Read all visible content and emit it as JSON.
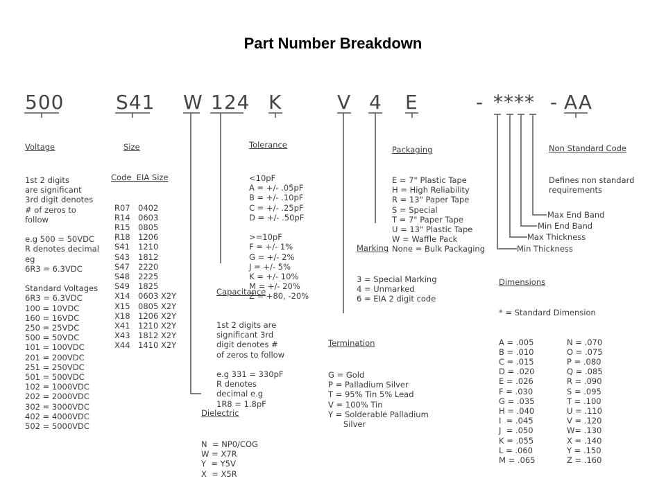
{
  "title": "Part Number Breakdown",
  "codes": {
    "voltage": "500",
    "size": "S41",
    "dielectric": "W",
    "capacitance": "124",
    "tolerance": "K",
    "termination": "V",
    "marking": "4",
    "packaging": "E",
    "dash1": "-",
    "dimensions": "****",
    "dash2": "-",
    "nonstandard": "AA"
  },
  "voltage": {
    "title": "Voltage",
    "lines": [
      "1st 2 digits",
      "are significant",
      "3rd digit denotes",
      "# of zeros to",
      "follow",
      "",
      "e.g 500 = 50VDC",
      "R denotes decimal",
      "eg",
      "6R3 = 6.3VDC",
      "",
      "Standard Voltages",
      "6R3 = 6.3VDC",
      "100 = 10VDC",
      "160 = 16VDC",
      "250 = 25VDC",
      "500 = 50VDC",
      "101 = 100VDC",
      "201 = 200VDC",
      "251 = 250VDC",
      "501 = 500VDC",
      "102 = 1000VDC",
      "202 = 2000VDC",
      "302 = 3000VDC",
      "402 = 4000VDC",
      "502 = 5000VDC"
    ]
  },
  "size": {
    "title": "Size",
    "header": "Code  EIA Size",
    "rows": [
      [
        "R07",
        "0402"
      ],
      [
        "R14",
        "0603"
      ],
      [
        "R15",
        "0805"
      ],
      [
        "R18",
        "1206"
      ],
      [
        "S41",
        "1210"
      ],
      [
        "S43",
        "1812"
      ],
      [
        "S47",
        "2220"
      ],
      [
        "S48",
        "2225"
      ],
      [
        "S49",
        "1825"
      ],
      [
        "X14",
        "0603 X2Y"
      ],
      [
        "X15",
        "0805 X2Y"
      ],
      [
        "X18",
        "1206 X2Y"
      ],
      [
        "X41",
        "1210 X2Y"
      ],
      [
        "X43",
        "1812 X2Y"
      ],
      [
        "X44",
        "1410 X2Y"
      ]
    ]
  },
  "tolerance": {
    "title": "Tolerance",
    "lines": [
      "<10pF",
      "A = +/- .05pF",
      "B = +/- .10pF",
      "C = +/- .25pF",
      "D = +/- .50pF",
      "",
      ">=10pF",
      "F = +/- 1%",
      "G = +/- 2%",
      "J = +/- 5%",
      "K = +/- 10%",
      "M = +/- 20%",
      "Z = +80, -20%"
    ]
  },
  "capacitance": {
    "title": "Capacitance",
    "lines": [
      "1st 2 digits are",
      "significant 3rd",
      "digit denotes #",
      "of zeros to follow",
      "",
      "e.g 331 = 330pF",
      "R denotes",
      "decimal e.g",
      "1R8 = 1.8pF"
    ]
  },
  "dielectric": {
    "title": "Dielectric",
    "lines": [
      "N  = NP0/COG",
      "W = X7R",
      "Y  = Y5V",
      "X  = X5R"
    ]
  },
  "termination": {
    "title": "Termination",
    "lines": [
      "G = Gold",
      "P = Palladium Silver",
      "T = 95% Tin 5% Lead",
      "V = 100% Tin",
      "Y = Solderable Palladium",
      "      Silver"
    ]
  },
  "marking": {
    "title": "Marking",
    "lines": [
      "3 = Special Marking",
      "4 = Unmarked",
      "6 = EIA 2 digit code"
    ]
  },
  "packaging": {
    "title": "Packaging",
    "lines": [
      "E = 7\" Plastic Tape",
      "H = High Reliability",
      "R = 13\" Paper Tape",
      "S = Special",
      "T = 7\" Paper Tape",
      "U = 13\" Plastic Tape",
      "W = Waffle Pack",
      "None = Bulk Packaging"
    ]
  },
  "nonstandard": {
    "title": "Non Standard Code",
    "lines": [
      "Defines non standard",
      "requirements"
    ]
  },
  "dim_labels": {
    "max_end_band": "Max End Band",
    "min_end_band": "Min End Band",
    "max_thickness": "Max Thickness",
    "min_thickness": "Min Thickness"
  },
  "dimensions": {
    "title": "Dimensions",
    "note": "* = Standard Dimension",
    "rows": [
      [
        "A = .005",
        "N = .070"
      ],
      [
        "B = .010",
        "O = .075"
      ],
      [
        "C = .015",
        "P = .080"
      ],
      [
        "D = .020",
        "Q = .085"
      ],
      [
        "E = .026",
        "R = .090"
      ],
      [
        "F = .030",
        "S = .095"
      ],
      [
        "G = .035",
        "T = .100"
      ],
      [
        "H = .040",
        "U = .110"
      ],
      [
        "I  = .045",
        "V = .120"
      ],
      [
        "J  = .050",
        "W= .130"
      ],
      [
        "K = .055",
        "X = .140"
      ],
      [
        "L = .060",
        "Y = .150"
      ],
      [
        "M = .065",
        "Z = .160"
      ]
    ]
  }
}
